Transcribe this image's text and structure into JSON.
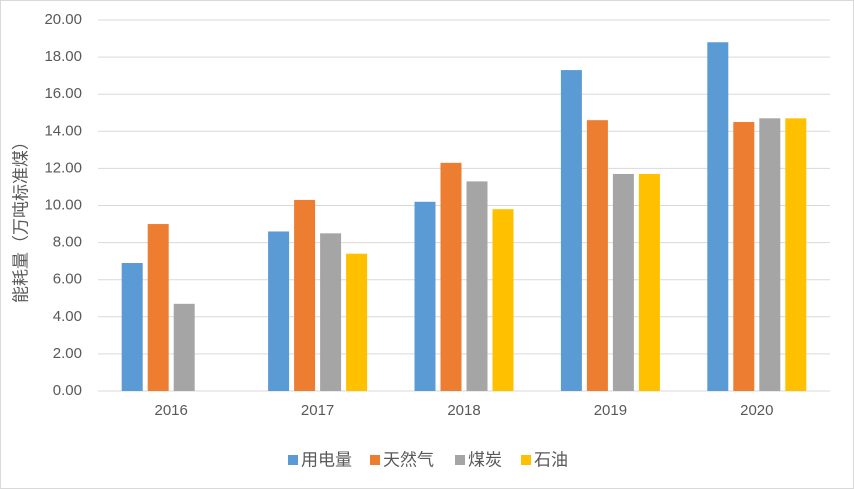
{
  "chart_data": {
    "type": "bar",
    "y_label": "能耗量（万吨标准煤）",
    "categories": [
      "2016",
      "2017",
      "2018",
      "2019",
      "2020"
    ],
    "series": [
      {
        "name": "用电量",
        "color": "#5b9bd5",
        "values": [
          6.9,
          8.6,
          10.2,
          17.3,
          18.8
        ]
      },
      {
        "name": "天然气",
        "color": "#ed7d31",
        "values": [
          9.0,
          10.3,
          12.3,
          14.6,
          14.5
        ]
      },
      {
        "name": "煤炭",
        "color": "#a5a5a5",
        "values": [
          4.7,
          8.5,
          11.3,
          11.7,
          14.7
        ]
      },
      {
        "name": "石油",
        "color": "#ffc000",
        "values": [
          null,
          7.4,
          9.8,
          11.7,
          14.7
        ]
      }
    ],
    "ylim": [
      0,
      20
    ],
    "yticks": [
      {
        "value": 0,
        "label": "0.00"
      },
      {
        "value": 2,
        "label": "2.00"
      },
      {
        "value": 4,
        "label": "4.00"
      },
      {
        "value": 6,
        "label": "6.00"
      },
      {
        "value": 8,
        "label": "8.00"
      },
      {
        "value": 10,
        "label": "10.00"
      },
      {
        "value": 12,
        "label": "12.00"
      },
      {
        "value": 14,
        "label": "14.00"
      },
      {
        "value": 16,
        "label": "16.00"
      },
      {
        "value": 18,
        "label": "18.00"
      },
      {
        "value": 20,
        "label": "20.00"
      }
    ],
    "grid": true,
    "legend": "bottom"
  }
}
